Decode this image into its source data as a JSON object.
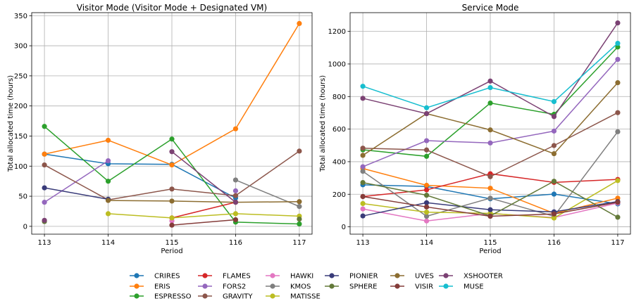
{
  "colors": {
    "CRIRES": "#1f77b4",
    "ERIS": "#ff7f0e",
    "ESPRESSO": "#2ca02c",
    "FLAMES": "#d62728",
    "FORS2": "#9467bd",
    "GRAVITY": "#8c564b",
    "HAWKI": "#e377c2",
    "KMOS": "#7f7f7f",
    "MATISSE": "#bcbd22",
    "PIONIER": "#393b79",
    "SPHERE": "#637939",
    "UVES": "#8c6d31",
    "VISIR": "#843c39",
    "XSHOOTER": "#7b4173",
    "MUSE": "#17becf"
  },
  "legend": {
    "placement": "bottom",
    "entries": [
      "CRIRES",
      "ERIS",
      "ESPRESSO",
      "FLAMES",
      "FORS2",
      "GRAVITY",
      "HAWKI",
      "KMOS",
      "MATISSE",
      "PIONIER",
      "SPHERE",
      "UVES",
      "VISIR",
      "XSHOOTER",
      "MUSE"
    ]
  },
  "chart_data": [
    {
      "type": "line",
      "title": "Visitor Mode (Visitor Mode + Designated VM)",
      "xlabel": "Period",
      "ylabel": "Total allocated time (hours)",
      "x": [
        113,
        114,
        115,
        116,
        117
      ],
      "ylim": [
        -13,
        355
      ],
      "yticks": [
        0,
        50,
        100,
        150,
        200,
        250,
        300,
        350
      ],
      "grid": true,
      "series": [
        {
          "name": "CRIRES",
          "values": [
            120,
            104,
            103,
            47,
            null
          ]
        },
        {
          "name": "ERIS",
          "values": [
            120,
            143,
            102,
            162,
            337
          ]
        },
        {
          "name": "ESPRESSO",
          "values": [
            166,
            75,
            145,
            7,
            4
          ]
        },
        {
          "name": "FLAMES",
          "values": [
            null,
            null,
            14,
            40,
            null
          ]
        },
        {
          "name": "FORS2",
          "values": [
            40,
            109,
            null,
            59,
            null
          ]
        },
        {
          "name": "GRAVITY",
          "values": [
            102,
            44,
            62,
            51,
            125
          ]
        },
        {
          "name": "HAWKI",
          "values": [
            null,
            null,
            9,
            null,
            null
          ]
        },
        {
          "name": "KMOS",
          "values": [
            null,
            null,
            null,
            77,
            33
          ]
        },
        {
          "name": "MATISSE",
          "values": [
            null,
            21,
            14,
            21,
            17
          ]
        },
        {
          "name": "PIONIER",
          "values": [
            64,
            45,
            null,
            null,
            null
          ]
        },
        {
          "name": "SPHERE",
          "values": [
            8,
            null,
            null,
            null,
            12
          ]
        },
        {
          "name": "UVES",
          "values": [
            null,
            43,
            42,
            40,
            41
          ]
        },
        {
          "name": "VISIR",
          "values": [
            null,
            null,
            2,
            11,
            null
          ]
        },
        {
          "name": "XSHOOTER",
          "values": [
            10,
            null,
            124,
            40,
            null
          ]
        },
        {
          "name": "MUSE",
          "values": [
            null,
            null,
            null,
            null,
            null
          ]
        }
      ]
    },
    {
      "type": "line",
      "title": "Service Mode",
      "xlabel": "Period",
      "ylabel": "Total allocated time (hours)",
      "x": [
        113,
        114,
        115,
        116,
        117
      ],
      "ylim": [
        -45,
        1315
      ],
      "yticks": [
        0,
        200,
        400,
        600,
        800,
        1000,
        1200
      ],
      "grid": true,
      "series": [
        {
          "name": "CRIRES",
          "values": [
            258,
            248,
            172,
            201,
            141
          ]
        },
        {
          "name": "ERIS",
          "values": [
            358,
            255,
            237,
            83,
            176
          ]
        },
        {
          "name": "ESPRESSO",
          "values": [
            473,
            433,
            760,
            691,
            1104
          ]
        },
        {
          "name": "FLAMES",
          "values": [
            186,
            227,
            326,
            273,
            291
          ]
        },
        {
          "name": "FORS2",
          "values": [
            369,
            529,
            515,
            588,
            1028
          ]
        },
        {
          "name": "GRAVITY",
          "values": [
            483,
            472,
            308,
            499,
            701
          ]
        },
        {
          "name": "HAWKI",
          "values": [
            110,
            36,
            82,
            57,
            146
          ]
        },
        {
          "name": "KMOS",
          "values": [
            341,
            65,
            176,
            65,
            584
          ]
        },
        {
          "name": "MATISSE",
          "values": [
            143,
            90,
            83,
            54,
            284
          ]
        },
        {
          "name": "PIONIER",
          "values": [
            67,
            148,
            105,
            92,
            155
          ]
        },
        {
          "name": "SPHERE",
          "values": [
            272,
            194,
            67,
            280,
            59
          ]
        },
        {
          "name": "UVES",
          "values": [
            439,
            695,
            595,
            449,
            885
          ]
        },
        {
          "name": "VISIR",
          "values": [
            186,
            122,
            65,
            79,
            151
          ]
        },
        {
          "name": "XSHOOTER",
          "values": [
            789,
            695,
            895,
            677,
            1252
          ]
        },
        {
          "name": "MUSE",
          "values": [
            863,
            731,
            855,
            769,
            1127
          ]
        }
      ]
    }
  ]
}
